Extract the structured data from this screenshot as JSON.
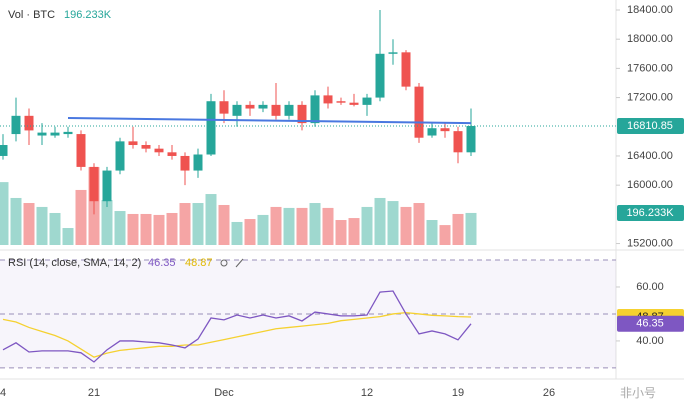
{
  "chart_data": {
    "type": "candlestick",
    "categories": [
      "4",
      null,
      null,
      null,
      null,
      null,
      null,
      "21",
      null,
      null,
      null,
      null,
      null,
      null,
      null,
      null,
      null,
      "Dec",
      null,
      null,
      null,
      null,
      null,
      null,
      null,
      null,
      null,
      null,
      "12",
      null,
      null,
      null,
      null,
      null,
      null,
      "19",
      null,
      null,
      null,
      null,
      null,
      null,
      "26",
      null,
      null,
      null,
      null,
      null
    ],
    "series": {
      "open": [
        16400,
        16700,
        16950,
        16680,
        16680,
        16700,
        16700,
        16250,
        15780,
        16200,
        16600,
        16550,
        16500,
        16450,
        16400,
        16200,
        16420,
        17150,
        16950,
        17100,
        17050,
        17100,
        16950,
        17100,
        16850,
        17230,
        17150,
        17130,
        17100,
        17200,
        17800,
        17820,
        17350,
        16680,
        16780,
        16740,
        16450,
        null,
        null,
        null,
        null,
        null,
        null,
        null,
        null,
        null,
        null,
        null
      ],
      "high": [
        16700,
        17200,
        17050,
        16850,
        16800,
        16800,
        16750,
        16300,
        16250,
        16650,
        16800,
        16600,
        16550,
        16550,
        16450,
        16500,
        17250,
        17300,
        17150,
        17150,
        17150,
        17400,
        17150,
        17150,
        17300,
        17350,
        17200,
        17250,
        17250,
        18400,
        18000,
        17850,
        17400,
        16850,
        16850,
        16800,
        17050,
        null,
        null,
        null,
        null,
        null,
        null,
        null,
        null,
        null,
        null,
        null
      ],
      "low": [
        16350,
        16600,
        16550,
        16550,
        16650,
        16650,
        16200,
        15600,
        15700,
        16150,
        16500,
        16450,
        16400,
        16350,
        16000,
        16100,
        16400,
        16850,
        16800,
        16950,
        17000,
        16900,
        16900,
        16750,
        16800,
        17050,
        17100,
        17080,
        16950,
        17150,
        17650,
        17300,
        16580,
        16650,
        16650,
        16300,
        16400,
        null,
        null,
        null,
        null,
        null,
        null,
        null,
        null,
        null,
        null,
        null
      ],
      "close": [
        16550,
        16950,
        16750,
        16720,
        16720,
        16730,
        16250,
        15780,
        16200,
        16600,
        16550,
        16500,
        16450,
        16400,
        16200,
        16420,
        17150,
        16980,
        17100,
        17050,
        17100,
        16950,
        17100,
        16850,
        17230,
        17120,
        17130,
        17100,
        17200,
        17800,
        17820,
        17350,
        16650,
        16780,
        16740,
        16450,
        16810.85,
        null,
        null,
        null,
        null,
        null,
        null,
        null,
        null,
        null,
        null,
        null
      ]
    },
    "up_color": "#26a69a",
    "down_color": "#ef5350",
    "ylim": [
      15180,
      18537
    ],
    "yticks": [
      {
        "value": 15200,
        "label": "15200.00"
      },
      {
        "value": 16000,
        "label": "16000.00"
      },
      {
        "value": 16400,
        "label": "16400.00"
      },
      {
        "value": 17200,
        "label": "17200.00"
      },
      {
        "value": 17600,
        "label": "17600.00"
      },
      {
        "value": 18000,
        "label": "18000.00"
      },
      {
        "value": 18400,
        "label": "18400.00"
      }
    ],
    "volume": {
      "title": "Vol · BTC",
      "value_label": "196.233K",
      "values": [
        385,
        288,
        257,
        233,
        196,
        104,
        337,
        477,
        275,
        208,
        190,
        190,
        184,
        196,
        257,
        257,
        312,
        245,
        141,
        159,
        184,
        233,
        227,
        227,
        257,
        227,
        153,
        165,
        233,
        288,
        269,
        233,
        257,
        153,
        122,
        190,
        196.233,
        null,
        null,
        null,
        null,
        null,
        null,
        null,
        null,
        null,
        null,
        null
      ],
      "ylim": [
        0,
        1500
      ],
      "up_color": "#9fd8cf",
      "down_color": "#f5a5a5"
    },
    "rsi": {
      "title": "RSI (14, close, SMA, 14, 2)",
      "color": "#7e57c2",
      "values": [
        36.7,
        39.3,
        35.9,
        36.3,
        36.3,
        36.3,
        35.6,
        32.2,
        36.7,
        40,
        40,
        39.6,
        39.3,
        38.5,
        37.4,
        40.7,
        48.5,
        47.8,
        49.6,
        48.5,
        49.6,
        48.5,
        49.3,
        47.4,
        50.7,
        50,
        49.3,
        49.3,
        49.6,
        58.1,
        58.5,
        50,
        42.6,
        43.7,
        42.6,
        40.4,
        46.35,
        null,
        null,
        null,
        null,
        null,
        null,
        null,
        null,
        null,
        null,
        null
      ],
      "ylim": [
        27,
        72
      ],
      "yticks": [
        {
          "value": 40,
          "label": "40.00"
        },
        {
          "value": 60,
          "label": "60.00"
        }
      ],
      "bands": [
        70,
        50,
        30
      ]
    },
    "rsi_sma": {
      "color": "#f5d130",
      "values": [
        48,
        47,
        45,
        43.5,
        42,
        40,
        37,
        34,
        35.5,
        36.5,
        37,
        37.5,
        38,
        38,
        38.5,
        38.5,
        39.5,
        40.5,
        41.5,
        42.5,
        43.5,
        44.5,
        45,
        45.5,
        46,
        46.5,
        47.5,
        48,
        48.5,
        49,
        50,
        50.5,
        50,
        49.5,
        49.3,
        49,
        48.87,
        null,
        null,
        null,
        null,
        null,
        null,
        null,
        null,
        null,
        null,
        null
      ]
    },
    "trendline": {
      "color": "#4a78e0",
      "values": [
        null,
        null,
        null,
        null,
        null,
        16920,
        null,
        null,
        null,
        null,
        null,
        null,
        null,
        null,
        null,
        null,
        null,
        null,
        null,
        null,
        null,
        null,
        null,
        null,
        null,
        null,
        null,
        null,
        null,
        null,
        null,
        null,
        null,
        null,
        null,
        null,
        16850,
        null,
        null,
        null,
        null,
        null,
        null,
        null,
        null,
        null,
        null,
        null
      ]
    },
    "watermark": "非小号"
  }
}
